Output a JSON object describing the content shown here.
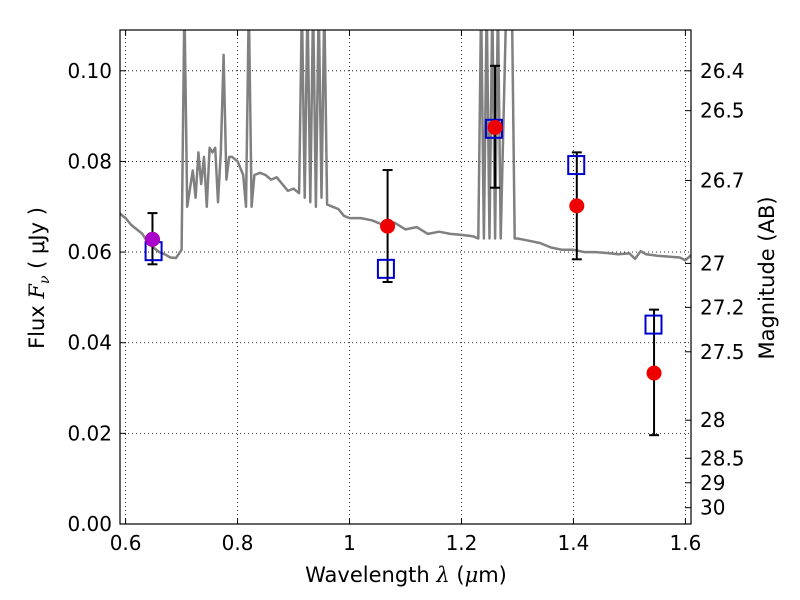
{
  "chart_data": {
    "type": "scatter",
    "xlabel": {
      "prefix": "Wavelength  ",
      "symbol": "λ",
      "unit_open": " (",
      "unit_sym": "μ",
      "unit_close": "m)"
    },
    "ylabel": {
      "prefix": "Flux  ",
      "symbol": "F",
      "subscript": "ν",
      "unit": "  ( μJy )"
    },
    "y2label": "Magnitude (AB)",
    "xlim": [
      0.59,
      1.61
    ],
    "ylim": [
      0.0,
      0.109
    ],
    "grid": true,
    "x_ticks": [
      {
        "value": 0.6,
        "label": "0.6"
      },
      {
        "value": 0.8,
        "label": "0.8"
      },
      {
        "value": 1.0,
        "label": "1"
      },
      {
        "value": 1.2,
        "label": "1.2"
      },
      {
        "value": 1.4,
        "label": "1.4"
      },
      {
        "value": 1.6,
        "label": "1.6"
      }
    ],
    "y_ticks": [
      {
        "value": 0.0,
        "label": "0.00"
      },
      {
        "value": 0.02,
        "label": "0.02"
      },
      {
        "value": 0.04,
        "label": "0.04"
      },
      {
        "value": 0.06,
        "label": "0.06"
      },
      {
        "value": 0.08,
        "label": "0.08"
      },
      {
        "value": 0.1,
        "label": "0.10"
      }
    ],
    "magnitude_ticks": [
      {
        "flux": 0.1,
        "label": "26.4"
      },
      {
        "flux": 0.0912,
        "label": "26.5"
      },
      {
        "flux": 0.0758,
        "label": "26.7"
      },
      {
        "flux": 0.0575,
        "label": "27"
      },
      {
        "flux": 0.0478,
        "label": "27.2"
      },
      {
        "flux": 0.038,
        "label": "27.5"
      },
      {
        "flux": 0.0229,
        "label": "28"
      },
      {
        "flux": 0.0145,
        "label": "28.5"
      },
      {
        "flux": 0.0091,
        "label": "29"
      },
      {
        "flux": 0.0036,
        "label": "30"
      }
    ],
    "model_sed": {
      "color": "#808080",
      "x": [
        0.59,
        0.6,
        0.61,
        0.62,
        0.63,
        0.64,
        0.65,
        0.66,
        0.67,
        0.68,
        0.69,
        0.7,
        0.705,
        0.71,
        0.715,
        0.72,
        0.725,
        0.73,
        0.735,
        0.74,
        0.745,
        0.75,
        0.755,
        0.76,
        0.765,
        0.77,
        0.775,
        0.78,
        0.785,
        0.79,
        0.8,
        0.81,
        0.815,
        0.82,
        0.825,
        0.83,
        0.84,
        0.85,
        0.86,
        0.87,
        0.88,
        0.89,
        0.9,
        0.91,
        0.915,
        0.92,
        0.925,
        0.93,
        0.935,
        0.94,
        0.945,
        0.95,
        0.955,
        0.96,
        0.97,
        0.98,
        0.99,
        1.0,
        1.02,
        1.04,
        1.06,
        1.08,
        1.1,
        1.12,
        1.14,
        1.16,
        1.18,
        1.2,
        1.22,
        1.23,
        1.235,
        1.24,
        1.245,
        1.25,
        1.255,
        1.26,
        1.265,
        1.27,
        1.28,
        1.29,
        1.295,
        1.3,
        1.32,
        1.34,
        1.36,
        1.38,
        1.4,
        1.42,
        1.44,
        1.46,
        1.48,
        1.5,
        1.51,
        1.52,
        1.53,
        1.55,
        1.57,
        1.59,
        1.6,
        1.61
      ],
      "y": [
        0.0685,
        0.0675,
        0.066,
        0.065,
        0.064,
        0.062,
        0.061,
        0.06,
        0.0595,
        0.0588,
        0.0587,
        0.0605,
        0.115,
        0.07,
        0.074,
        0.078,
        0.072,
        0.082,
        0.075,
        0.081,
        0.07,
        0.083,
        0.082,
        0.083,
        0.071,
        0.082,
        0.1035,
        0.076,
        0.081,
        0.081,
        0.08,
        0.077,
        0.07,
        0.115,
        0.07,
        0.077,
        0.0775,
        0.077,
        0.076,
        0.0765,
        0.075,
        0.0735,
        0.074,
        0.073,
        0.115,
        0.072,
        0.115,
        0.071,
        0.115,
        0.07,
        0.115,
        0.072,
        0.115,
        0.0705,
        0.07,
        0.0695,
        0.068,
        0.0675,
        0.0675,
        0.067,
        0.066,
        0.0665,
        0.065,
        0.0655,
        0.064,
        0.0645,
        0.064,
        0.0638,
        0.0635,
        0.063,
        0.115,
        0.063,
        0.115,
        0.063,
        0.115,
        0.063,
        0.115,
        0.063,
        0.115,
        0.115,
        0.063,
        0.063,
        0.0625,
        0.062,
        0.061,
        0.0605,
        0.0605,
        0.06,
        0.06,
        0.0598,
        0.0595,
        0.0597,
        0.0585,
        0.0602,
        0.0595,
        0.0592,
        0.059,
        0.0588,
        0.0582,
        0.0593
      ]
    },
    "series": [
      {
        "marker": "open-square",
        "color": "#0000cc",
        "x": [
          0.65,
          1.065,
          1.258,
          1.405,
          1.543
        ],
        "y": [
          0.0602,
          0.0563,
          0.0872,
          0.0792,
          0.044
        ]
      },
      {
        "marker": "filled-circle",
        "color": "#ee0000",
        "x": [
          0.648,
          1.068,
          1.26,
          1.406,
          1.544
        ],
        "y": [
          0.0628,
          0.0657,
          0.0875,
          0.0702,
          0.0333
        ],
        "err_low": [
          0.0055,
          0.0123,
          0.0133,
          0.0118,
          0.0137
        ],
        "err_high": [
          0.0058,
          0.0124,
          0.0136,
          0.0118,
          0.014
        ]
      },
      {
        "marker": "filled-circle",
        "color": "#aa00cc",
        "x": [
          0.648
        ],
        "y": [
          0.0628
        ]
      }
    ]
  }
}
